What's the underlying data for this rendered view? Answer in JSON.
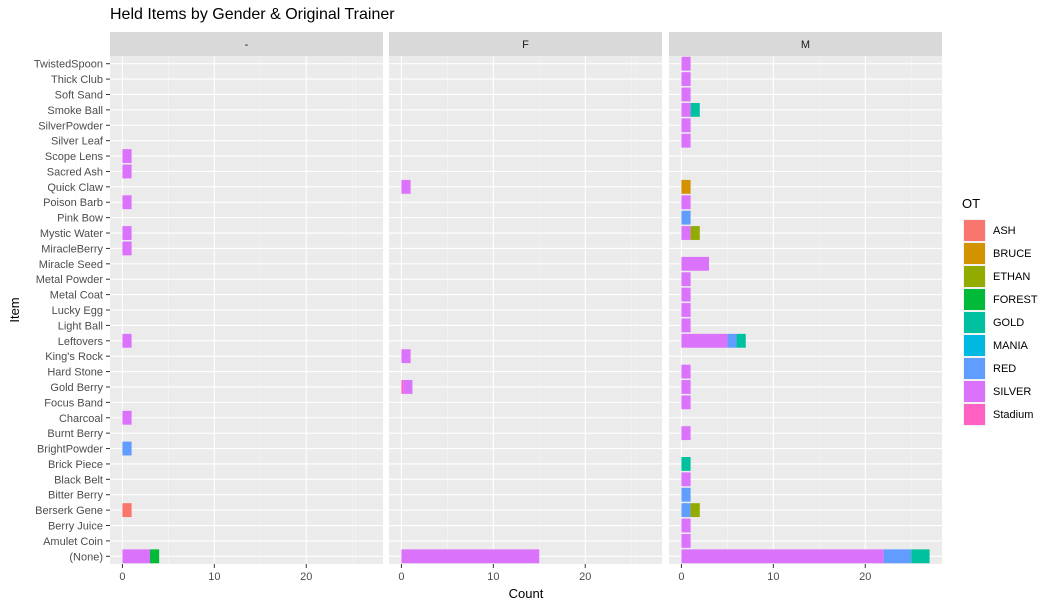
{
  "chart_data": {
    "type": "bar",
    "orientation": "horizontal",
    "stacked": true,
    "faceted": true,
    "title": "Held Items by Gender & Original Trainer",
    "xlabel": "Count",
    "ylabel": "Item",
    "xlim": [
      -1.35,
      28.35
    ],
    "x_ticks": [
      0,
      10,
      20
    ],
    "grid": true,
    "legend_title": "OT",
    "legend_position": "right",
    "facets": [
      "-",
      "F",
      "M"
    ],
    "categories": [
      "TwistedSpoon",
      "Thick Club",
      "Soft Sand",
      "Smoke Ball",
      "SilverPowder",
      "Silver Leaf",
      "Scope Lens",
      "Sacred Ash",
      "Quick Claw",
      "Poison Barb",
      "Pink Bow",
      "Mystic Water",
      "MiracleBerry",
      "Miracle Seed",
      "Metal Powder",
      "Metal Coat",
      "Lucky Egg",
      "Light Ball",
      "Leftovers",
      "King's Rock",
      "Hard Stone",
      "Gold Berry",
      "Focus Band",
      "Charcoal",
      "Burnt Berry",
      "BrightPowder",
      "Brick Piece",
      "Black Belt",
      "Bitter Berry",
      "Berserk Gene",
      "Berry Juice",
      "Amulet Coin",
      "(None)"
    ],
    "series": [
      {
        "name": "ASH",
        "color": "#F8766D"
      },
      {
        "name": "BRUCE",
        "color": "#D39200"
      },
      {
        "name": "ETHAN",
        "color": "#93AA00"
      },
      {
        "name": "FOREST",
        "color": "#00BA38"
      },
      {
        "name": "GOLD",
        "color": "#00C19F"
      },
      {
        "name": "MANIA",
        "color": "#00B9E3"
      },
      {
        "name": "RED",
        "color": "#619CFF"
      },
      {
        "name": "SILVER",
        "color": "#DB72FB"
      },
      {
        "name": "Stadium",
        "color": "#FF61C3"
      }
    ],
    "data": {
      "-": {
        "Scope Lens": {
          "SILVER": 1
        },
        "Sacred Ash": {
          "SILVER": 1
        },
        "Poison Barb": {
          "SILVER": 1
        },
        "Mystic Water": {
          "SILVER": 1
        },
        "MiracleBerry": {
          "SILVER": 1
        },
        "Leftovers": {
          "SILVER": 1
        },
        "Charcoal": {
          "SILVER": 1
        },
        "BrightPowder": {
          "RED": 1
        },
        "Berserk Gene": {
          "ASH": 1
        },
        "(None)": {
          "FOREST": 1,
          "SILVER": 3
        }
      },
      "F": {
        "Quick Claw": {
          "SILVER": 1
        },
        "King's Rock": {
          "SILVER": 1
        },
        "Gold Berry": {
          "SILVER": 1,
          "Stadium": 0.2
        },
        "(None)": {
          "SILVER": 15
        }
      },
      "M": {
        "TwistedSpoon": {
          "SILVER": 1
        },
        "Thick Club": {
          "SILVER": 1
        },
        "Soft Sand": {
          "SILVER": 1
        },
        "Smoke Ball": {
          "GOLD": 1,
          "SILVER": 1
        },
        "SilverPowder": {
          "SILVER": 1
        },
        "Silver Leaf": {
          "SILVER": 1
        },
        "Quick Claw": {
          "BRUCE": 1
        },
        "Poison Barb": {
          "SILVER": 1
        },
        "Pink Bow": {
          "RED": 1
        },
        "Mystic Water": {
          "ETHAN": 1,
          "SILVER": 1
        },
        "Miracle Seed": {
          "SILVER": 3
        },
        "Metal Powder": {
          "SILVER": 1
        },
        "Metal Coat": {
          "SILVER": 1
        },
        "Lucky Egg": {
          "SILVER": 1
        },
        "Light Ball": {
          "SILVER": 1
        },
        "Leftovers": {
          "GOLD": 1,
          "RED": 1,
          "SILVER": 5
        },
        "Hard Stone": {
          "SILVER": 1
        },
        "Gold Berry": {
          "SILVER": 1
        },
        "Focus Band": {
          "SILVER": 1
        },
        "Burnt Berry": {
          "SILVER": 1
        },
        "Brick Piece": {
          "GOLD": 1
        },
        "Black Belt": {
          "SILVER": 1
        },
        "Bitter Berry": {
          "RED": 1
        },
        "Berserk Gene": {
          "ETHAN": 1,
          "RED": 1
        },
        "Berry Juice": {
          "SILVER": 1
        },
        "Amulet Coin": {
          "SILVER": 1
        },
        "(None)": {
          "GOLD": 2,
          "RED": 3,
          "SILVER": 22
        }
      }
    }
  }
}
